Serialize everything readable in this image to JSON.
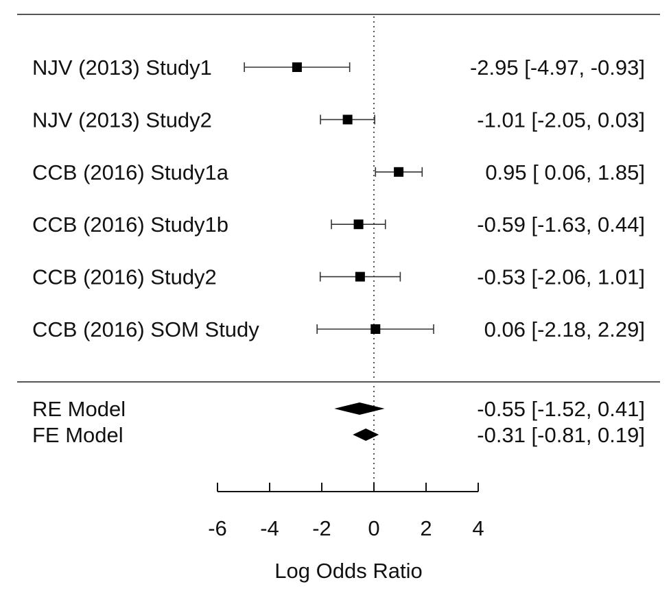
{
  "chart_data": {
    "type": "forest",
    "title": "",
    "xlabel": "Log Odds Ratio",
    "ylabel": "",
    "xlim": [
      -6,
      4
    ],
    "xticks": [
      -6,
      -4,
      -2,
      0,
      2,
      4
    ],
    "xtick_labels": [
      "-6",
      "-4",
      "-2",
      "0",
      "2",
      "4"
    ],
    "reference_line": 0,
    "grid": false,
    "studies": [
      {
        "label": "NJV (2013) Study1",
        "estimate": -2.95,
        "lower": -4.97,
        "upper": -0.93,
        "text": "-2.95 [-4.97, -0.93]"
      },
      {
        "label": "NJV (2013) Study2",
        "estimate": -1.01,
        "lower": -2.05,
        "upper": 0.03,
        "text": "-1.01 [-2.05,  0.03]"
      },
      {
        "label": "CCB (2016) Study1a",
        "estimate": 0.95,
        "lower": 0.06,
        "upper": 1.85,
        "text": "0.95 [ 0.06,  1.85]"
      },
      {
        "label": "CCB (2016) Study1b",
        "estimate": -0.59,
        "lower": -1.63,
        "upper": 0.44,
        "text": "-0.59 [-1.63,  0.44]"
      },
      {
        "label": "CCB (2016) Study2",
        "estimate": -0.53,
        "lower": -2.06,
        "upper": 1.01,
        "text": "-0.53 [-2.06,  1.01]"
      },
      {
        "label": "CCB (2016) SOM Study",
        "estimate": 0.06,
        "lower": -2.18,
        "upper": 2.29,
        "text": "0.06 [-2.18,  2.29]"
      }
    ],
    "models": [
      {
        "label": "RE Model",
        "estimate": -0.55,
        "lower": -1.52,
        "upper": 0.41,
        "text": "-0.55 [-1.52, 0.41]"
      },
      {
        "label": "FE Model",
        "estimate": -0.31,
        "lower": -0.81,
        "upper": 0.19,
        "text": "-0.31 [-0.81,  0.19]"
      }
    ]
  }
}
